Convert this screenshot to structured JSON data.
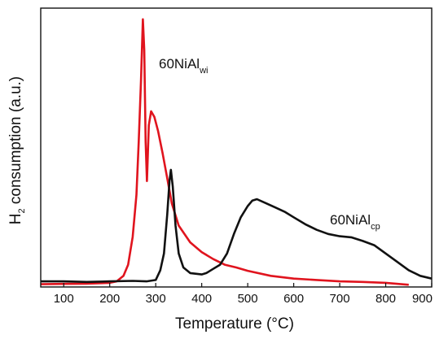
{
  "chart_data": {
    "type": "line",
    "xlabel": "Temperature (°C)",
    "ylabel_main": "H",
    "ylabel_sub": "2",
    "ylabel_rest": " consumption (a.u.)",
    "xlim": [
      50,
      900
    ],
    "ylim": [
      0,
      1.0
    ],
    "x_ticks": [
      100,
      200,
      300,
      400,
      500,
      600,
      700,
      800,
      900
    ],
    "x_tick_labels": [
      "100",
      "200",
      "300",
      "400",
      "500",
      "600",
      "700",
      "800",
      "900"
    ],
    "y_ticks_labeled": false,
    "grid": false,
    "series": [
      {
        "color": "#e0141e",
        "annotation_main": "60NiAl",
        "annotation_sub": "wi",
        "points": [
          [
            50,
            0.01
          ],
          [
            100,
            0.011
          ],
          [
            150,
            0.012
          ],
          [
            200,
            0.015
          ],
          [
            215,
            0.02
          ],
          [
            230,
            0.04
          ],
          [
            240,
            0.08
          ],
          [
            250,
            0.18
          ],
          [
            258,
            0.33
          ],
          [
            263,
            0.52
          ],
          [
            268,
            0.74
          ],
          [
            272,
            0.96
          ],
          [
            275,
            0.85
          ],
          [
            278,
            0.52
          ],
          [
            281,
            0.38
          ],
          [
            285,
            0.58
          ],
          [
            290,
            0.63
          ],
          [
            297,
            0.61
          ],
          [
            305,
            0.56
          ],
          [
            315,
            0.48
          ],
          [
            325,
            0.39
          ],
          [
            335,
            0.3
          ],
          [
            350,
            0.22
          ],
          [
            375,
            0.16
          ],
          [
            400,
            0.125
          ],
          [
            425,
            0.1
          ],
          [
            450,
            0.08
          ],
          [
            475,
            0.07
          ],
          [
            500,
            0.058
          ],
          [
            550,
            0.04
          ],
          [
            600,
            0.03
          ],
          [
            650,
            0.025
          ],
          [
            700,
            0.02
          ],
          [
            750,
            0.018
          ],
          [
            800,
            0.015
          ],
          [
            850,
            0.008
          ]
        ]
      },
      {
        "color": "#111111",
        "annotation_main": "60NiAl",
        "annotation_sub": "cp",
        "points": [
          [
            50,
            0.02
          ],
          [
            100,
            0.02
          ],
          [
            150,
            0.018
          ],
          [
            200,
            0.02
          ],
          [
            250,
            0.022
          ],
          [
            280,
            0.02
          ],
          [
            300,
            0.025
          ],
          [
            310,
            0.06
          ],
          [
            318,
            0.12
          ],
          [
            325,
            0.26
          ],
          [
            330,
            0.38
          ],
          [
            333,
            0.42
          ],
          [
            337,
            0.36
          ],
          [
            343,
            0.22
          ],
          [
            350,
            0.12
          ],
          [
            360,
            0.07
          ],
          [
            375,
            0.05
          ],
          [
            400,
            0.045
          ],
          [
            410,
            0.05
          ],
          [
            425,
            0.065
          ],
          [
            440,
            0.08
          ],
          [
            455,
            0.12
          ],
          [
            470,
            0.19
          ],
          [
            485,
            0.25
          ],
          [
            500,
            0.29
          ],
          [
            510,
            0.31
          ],
          [
            520,
            0.315
          ],
          [
            540,
            0.3
          ],
          [
            560,
            0.285
          ],
          [
            580,
            0.27
          ],
          [
            600,
            0.25
          ],
          [
            625,
            0.225
          ],
          [
            650,
            0.205
          ],
          [
            675,
            0.19
          ],
          [
            700,
            0.182
          ],
          [
            725,
            0.178
          ],
          [
            750,
            0.165
          ],
          [
            775,
            0.15
          ],
          [
            800,
            0.12
          ],
          [
            825,
            0.09
          ],
          [
            850,
            0.06
          ],
          [
            875,
            0.04
          ],
          [
            900,
            0.03
          ]
        ]
      }
    ]
  }
}
